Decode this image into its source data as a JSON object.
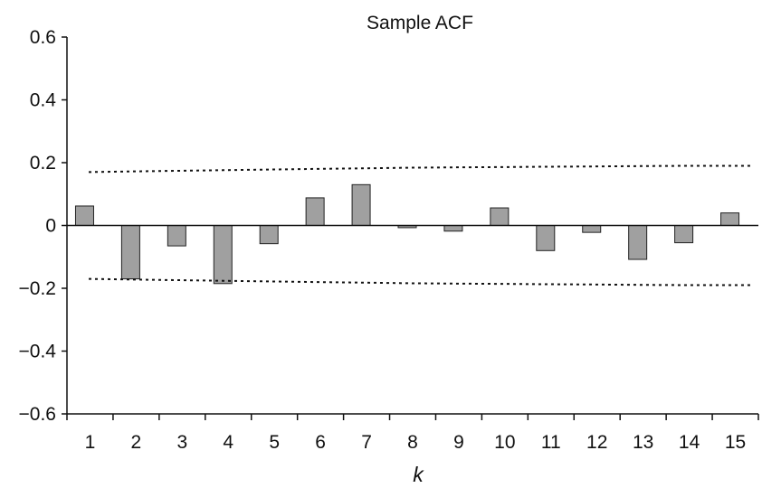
{
  "chart_data": {
    "type": "bar",
    "title": "Sample ACF",
    "xlabel": "k",
    "ylabel": "",
    "categories": [
      "1",
      "2",
      "3",
      "4",
      "5",
      "6",
      "7",
      "8",
      "9",
      "10",
      "11",
      "12",
      "13",
      "14",
      "15"
    ],
    "values": [
      0.062,
      -0.17,
      -0.065,
      -0.185,
      -0.058,
      0.088,
      0.13,
      -0.007,
      -0.018,
      0.056,
      -0.08,
      -0.022,
      -0.108,
      -0.055,
      0.04
    ],
    "confidence_upper": [
      0.17,
      0.172,
      0.174,
      0.176,
      0.178,
      0.18,
      0.182,
      0.184,
      0.185,
      0.186,
      0.187,
      0.188,
      0.189,
      0.19,
      0.19
    ],
    "confidence_lower": [
      -0.17,
      -0.172,
      -0.174,
      -0.176,
      -0.178,
      -0.18,
      -0.182,
      -0.184,
      -0.185,
      -0.186,
      -0.187,
      -0.188,
      -0.189,
      -0.19,
      -0.19
    ],
    "yticks": [
      "0.6",
      "0.4",
      "0.2",
      "0",
      "−0.2",
      "−0.4",
      "−0.6"
    ],
    "ylim": [
      -0.6,
      0.6
    ],
    "grid": false,
    "bar_color": "#a0a0a0",
    "bar_edge_color": "#222222"
  }
}
